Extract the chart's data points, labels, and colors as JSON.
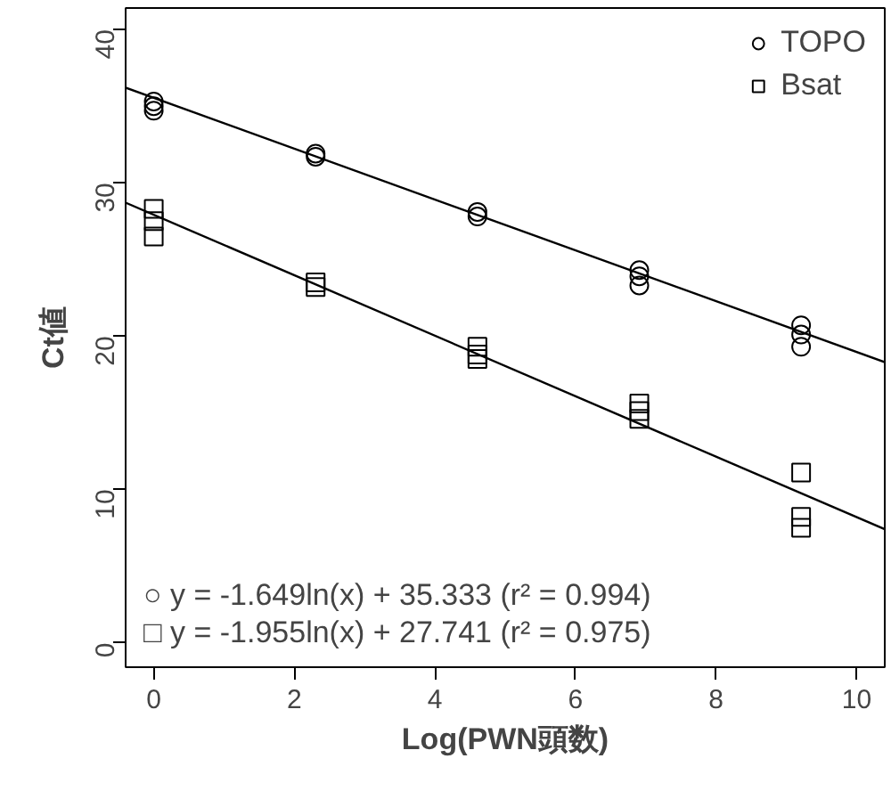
{
  "chart_data": {
    "type": "scatter",
    "xlabel": "Log(PWN頭数)",
    "ylabel": "Ct値",
    "xlim": [
      -0.4,
      10.4
    ],
    "ylim": [
      -1.6,
      41.4
    ],
    "xticks": [
      0,
      2,
      4,
      6,
      8,
      10
    ],
    "yticks": [
      0,
      10,
      20,
      30,
      40
    ],
    "grid": false,
    "legend": "top right",
    "series": [
      {
        "name": "TOPO",
        "color": "#000000",
        "marker": "circle",
        "x": [
          0,
          0,
          0,
          2.303,
          2.303,
          4.605,
          4.605,
          6.908,
          6.908,
          6.908,
          9.21,
          9.21,
          9.21
        ],
        "values": [
          35.3,
          35.0,
          34.7,
          31.9,
          31.7,
          28.1,
          27.8,
          24.3,
          23.9,
          23.3,
          20.7,
          20.1,
          19.3
        ]
      },
      {
        "name": "Bsat",
        "color": "#000000",
        "marker": "square",
        "x": [
          0,
          0,
          0,
          2.303,
          2.303,
          4.605,
          4.605,
          4.605,
          6.908,
          6.908,
          6.908,
          9.21,
          9.21,
          9.21
        ],
        "values": [
          28.3,
          27.5,
          26.5,
          23.5,
          23.2,
          19.3,
          18.8,
          18.5,
          15.6,
          15.1,
          14.6,
          11.1,
          8.2,
          7.5
        ]
      },
      {
        "type": "line",
        "color": "#000000",
        "x": [
          -0.4,
          10.4
        ],
        "values": [
          36.2,
          18.3
        ]
      },
      {
        "type": "line",
        "color": "#000000",
        "x": [
          -0.4,
          10.4
        ],
        "values": [
          28.7,
          7.4
        ]
      }
    ],
    "annotations": [
      "○ y = -1.649ln(x) + 35.333 (r² = 0.994)",
      "□ y = -1.955ln(x) + 27.741 (r² = 0.975)"
    ]
  }
}
